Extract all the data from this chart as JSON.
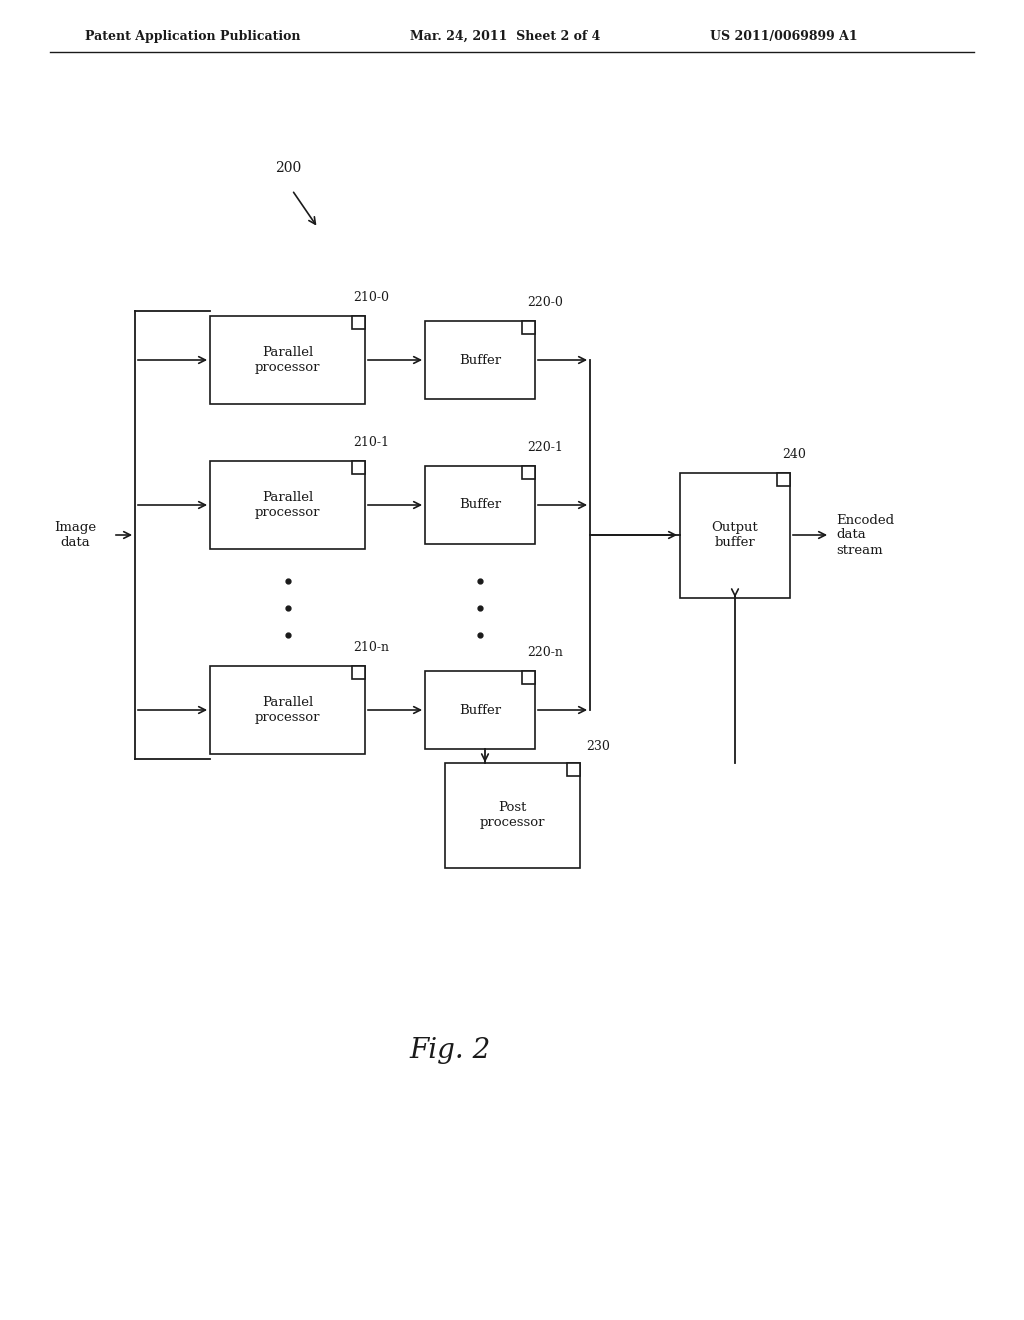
{
  "bg_color": "#ffffff",
  "header_left": "Patent Application Publication",
  "header_mid": "Mar. 24, 2011  Sheet 2 of 4",
  "header_right": "US 2011/0069899 A1",
  "fig_label": "Fig. 2",
  "label_200": "200",
  "label_210_0": "210-0",
  "label_210_1": "210-1",
  "label_210_n": "210-n",
  "label_220_0": "220-0",
  "label_220_1": "220-1",
  "label_220_n": "220-n",
  "label_230": "230",
  "label_240": "240",
  "text_parallel_processor": "Parallel\nprocessor",
  "text_buffer": "Buffer",
  "text_post_processor": "Post\nprocessor",
  "text_output_buffer": "Output\nbuffer",
  "text_image_data": "Image\ndata",
  "text_encoded_data_stream": "Encoded\ndata\nstream"
}
